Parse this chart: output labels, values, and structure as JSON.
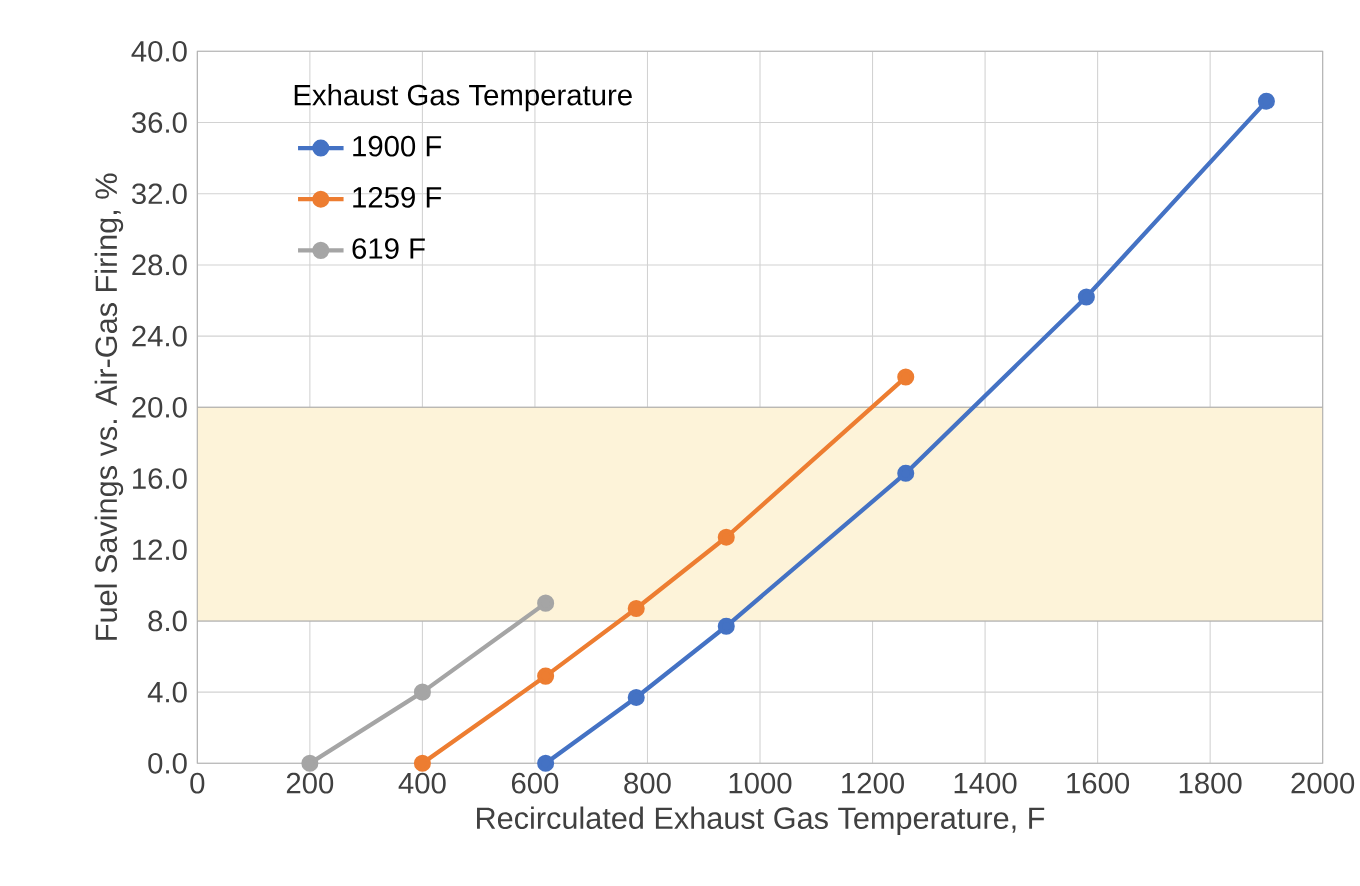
{
  "chart_data": {
    "type": "line",
    "xlabel": "Recirculated Exhaust Gas Temperature, F",
    "ylabel": "Fuel Savings vs. Air-Gas Firing, %",
    "legend_title": "Exhaust Gas Temperature",
    "series": [
      {
        "name": "1900 F",
        "color": "#4472c4",
        "x": [
          619,
          780,
          940,
          1259,
          1580,
          1900
        ],
        "values": [
          0,
          3.7,
          7.7,
          16.3,
          26.2,
          37.2
        ]
      },
      {
        "name": "1259 F",
        "color": "#ed7d31",
        "x": [
          400,
          619,
          780,
          940,
          1259
        ],
        "values": [
          0,
          4.9,
          8.7,
          12.7,
          21.7
        ]
      },
      {
        "name": "619 F",
        "color": "#a5a5a5",
        "x": [
          200,
          400,
          619
        ],
        "values": [
          0,
          4.0,
          9.0
        ]
      }
    ],
    "xlim": [
      0,
      2000
    ],
    "xticks": [
      0,
      200,
      400,
      600,
      800,
      1000,
      1200,
      1400,
      1600,
      1800,
      2000
    ],
    "ylim": [
      0,
      40
    ],
    "yticks": [
      {
        "value": 0,
        "label": "0.0"
      },
      {
        "value": 4,
        "label": "4.0"
      },
      {
        "value": 8,
        "label": "8.0"
      },
      {
        "value": 12,
        "label": "12.0"
      },
      {
        "value": 16,
        "label": "16.0"
      },
      {
        "value": 20,
        "label": "20.0"
      },
      {
        "value": 24,
        "label": "24.0"
      },
      {
        "value": 28,
        "label": "28.0"
      },
      {
        "value": 32,
        "label": "32.0"
      },
      {
        "value": 36,
        "label": "36.0"
      },
      {
        "value": 40,
        "label": "40.0"
      }
    ],
    "bands": [
      {
        "axis": "y",
        "from": 8,
        "to": 20,
        "color": "#fdf3d9"
      }
    ],
    "grid": true,
    "legend": "top left",
    "marker": "circle",
    "line_style": "solid"
  }
}
